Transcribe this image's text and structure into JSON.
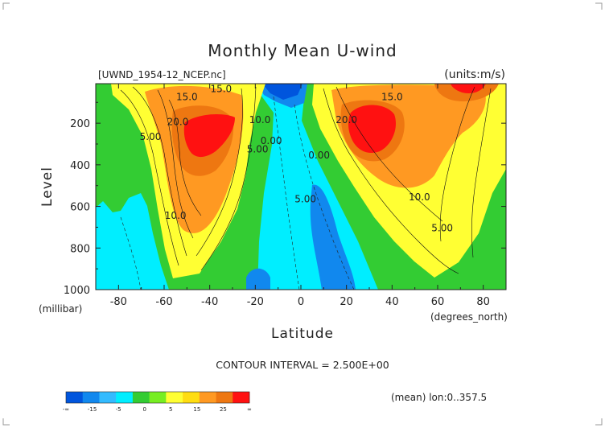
{
  "chart_data": {
    "type": "heatmap",
    "title": "Monthly Mean U-wind",
    "source_label": "[UWND_1954-12_NCEP.nc]",
    "units_label": "(units:m/s)",
    "xlabel": "Latitude",
    "x_units_label": "(degrees_north)",
    "ylabel": "Level",
    "y_units_label": "(millibar)",
    "xlim": [
      -90,
      90
    ],
    "ylim": [
      1000,
      10
    ],
    "x_ticks": [
      -80,
      -60,
      -40,
      -20,
      0,
      20,
      40,
      60,
      80
    ],
    "y_ticks": [
      200,
      400,
      600,
      800,
      1000
    ],
    "contour_interval_text": "CONTOUR INTERVAL = 2.500E+00",
    "footer_text": "(mean) lon:0..357.5",
    "contour_labels": [
      {
        "text": "15.0",
        "lat": -50,
        "lev": 90
      },
      {
        "text": "15.0",
        "lat": -35,
        "lev": 50
      },
      {
        "text": "20.0",
        "lat": -54,
        "lev": 210
      },
      {
        "text": "10.0",
        "lat": -18,
        "lev": 200
      },
      {
        "text": "5.00",
        "lat": -19,
        "lev": 340
      },
      {
        "text": "0.00",
        "lat": -13,
        "lev": 300
      },
      {
        "text": "5.00",
        "lat": -66,
        "lev": 280
      },
      {
        "text": "10.0",
        "lat": -55,
        "lev": 660
      },
      {
        "text": "0.00",
        "lat": 8,
        "lev": 370
      },
      {
        "text": "5.00",
        "lat": 2,
        "lev": 580
      },
      {
        "text": "10.0",
        "lat": 40,
        "lev": 10
      },
      {
        "text": "15.0",
        "lat": 40,
        "lev": 90
      },
      {
        "text": "20.0",
        "lat": 20,
        "lev": 200
      },
      {
        "text": "10.0",
        "lat": 52,
        "lev": 570
      },
      {
        "text": "5.00",
        "lat": 62,
        "lev": 720
      }
    ],
    "colorbar": {
      "colors": [
        "#0055dd",
        "#1188ee",
        "#33bbff",
        "#00eeff",
        "#33cc33",
        "#77ee22",
        "#ffff33",
        "#ffdd11",
        "#ff9922",
        "#ee7711",
        "#ff1111"
      ],
      "labels": [
        "-∞",
        "-15",
        "-5",
        "0",
        "5",
        "15",
        "25",
        "∞"
      ]
    }
  }
}
